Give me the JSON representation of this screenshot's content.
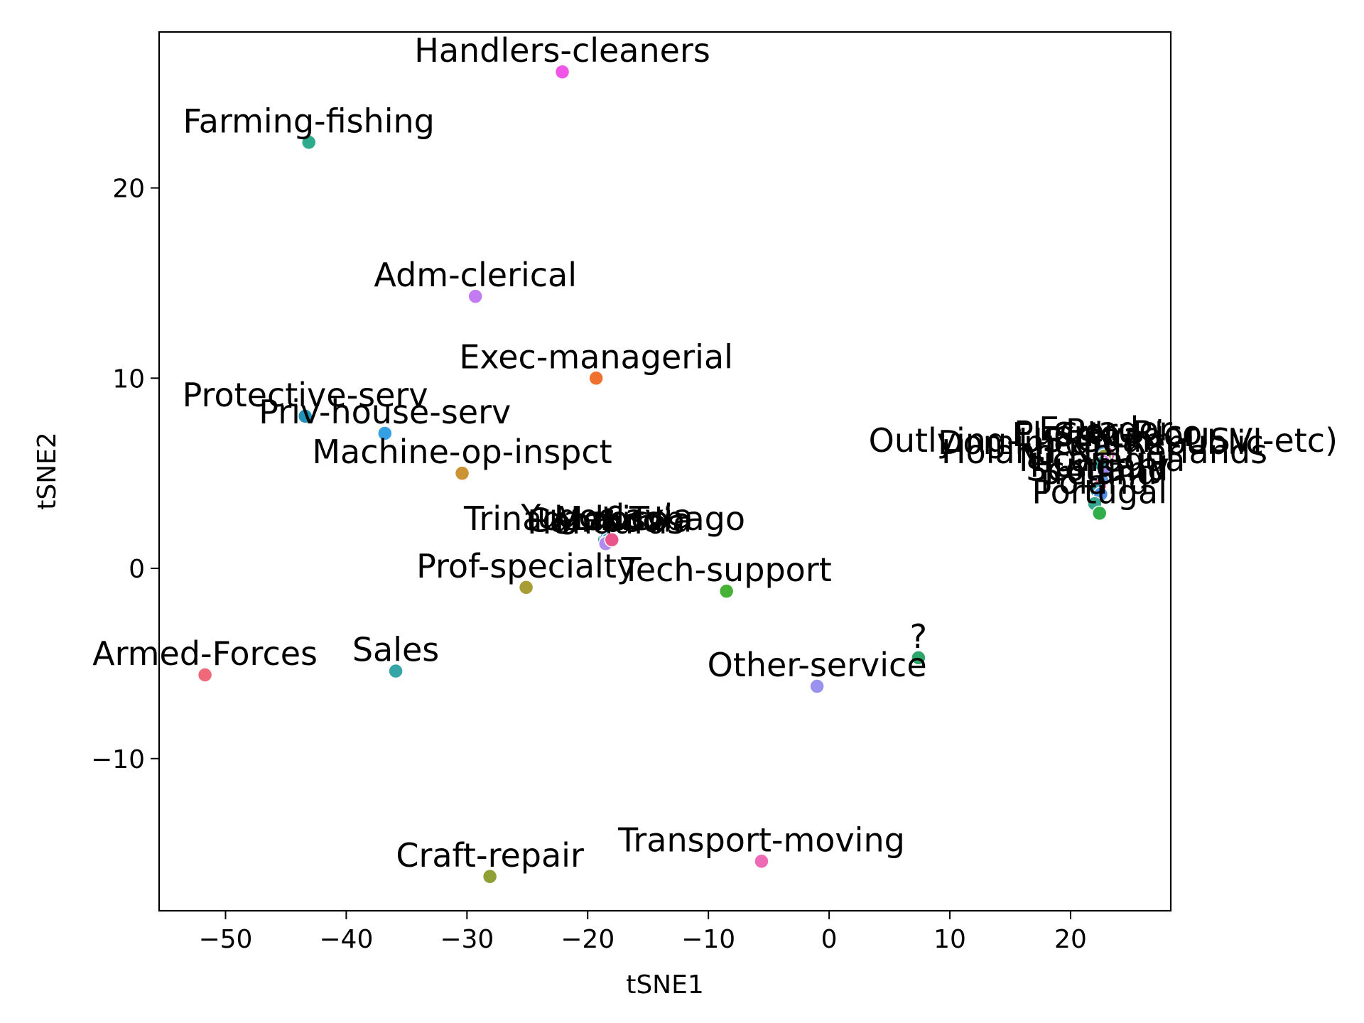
{
  "chart_data": {
    "type": "scatter",
    "xlabel": "tSNE1",
    "ylabel": "tSNE2",
    "xlim": [
      -55.5,
      28.3
    ],
    "ylim": [
      -18.0,
      28.2
    ],
    "xticks": [
      -50,
      -40,
      -30,
      -20,
      -10,
      0,
      10,
      20
    ],
    "yticks": [
      -10,
      0,
      10,
      20
    ],
    "xtick_labels": [
      "−50",
      "−40",
      "−30",
      "−20",
      "−10",
      "0",
      "10",
      "20"
    ],
    "ytick_labels": [
      "−10",
      "0",
      "10",
      "20"
    ],
    "grid": false,
    "legend": "none",
    "points": [
      {
        "label": "Handlers-cleaners",
        "x": -22.1,
        "y": 26.1,
        "color": "#ef55e6"
      },
      {
        "label": "Farming-fishing",
        "x": -43.1,
        "y": 22.4,
        "color": "#2eab8c"
      },
      {
        "label": "Adm-clerical",
        "x": -29.3,
        "y": 14.3,
        "color": "#c27bf0"
      },
      {
        "label": "Exec-managerial",
        "x": -19.3,
        "y": 10.0,
        "color": "#f0712d"
      },
      {
        "label": "Protective-serv",
        "x": -43.4,
        "y": 8.0,
        "color": "#2391b8"
      },
      {
        "label": "Priv-house-serv",
        "x": -36.8,
        "y": 7.1,
        "color": "#35a0e3"
      },
      {
        "label": "Machine-op-inspct",
        "x": -30.4,
        "y": 5.0,
        "color": "#cc9334"
      },
      {
        "label": "Trinadad&Tobago",
        "x": -18.6,
        "y": 1.5,
        "color": "#36ada0"
      },
      {
        "label": "Yugoslavia",
        "x": -18.4,
        "y": 1.6,
        "color": "#5d8de8"
      },
      {
        "label": "Cambodia",
        "x": -18.2,
        "y": 1.4,
        "color": "#ab7ff0"
      },
      {
        "label": "Laos",
        "x": -18.3,
        "y": 1.5,
        "color": "#39b0c8"
      },
      {
        "label": "Honduras",
        "x": -18.5,
        "y": 1.3,
        "color": "#b18af0"
      },
      {
        "label": "Mexico",
        "x": -18.0,
        "y": 1.5,
        "color": "#e9558a"
      },
      {
        "label": "Prof-specialty",
        "x": -25.1,
        "y": -1.0,
        "color": "#a89c35"
      },
      {
        "label": "Tech-support",
        "x": -8.5,
        "y": -1.2,
        "color": "#47b136"
      },
      {
        "label": "?",
        "x": 7.4,
        "y": -4.7,
        "color": "#2ea86a"
      },
      {
        "label": "Other-service",
        "x": -1.0,
        "y": -6.2,
        "color": "#9a92ee"
      },
      {
        "label": "Armed-Forces",
        "x": -51.7,
        "y": -5.6,
        "color": "#f0697a"
      },
      {
        "label": "Sales",
        "x": -35.9,
        "y": -5.4,
        "color": "#36a5a8"
      },
      {
        "label": "Transport-moving",
        "x": -5.6,
        "y": -15.4,
        "color": "#ef6ab4"
      },
      {
        "label": "Craft-repair",
        "x": -28.1,
        "y": -16.2,
        "color": "#90a035"
      },
      {
        "label": "Ecuador",
        "x": 22.9,
        "y": 6.2,
        "color": "#c98ef2"
      },
      {
        "label": "Puerto-Rico",
        "x": 23.1,
        "y": 6.0,
        "color": "#ea6ac0"
      },
      {
        "label": "Peru",
        "x": 22.6,
        "y": 6.1,
        "color": "#52a8d8"
      },
      {
        "label": "El-Salvador",
        "x": 22.8,
        "y": 5.9,
        "color": "#8fa23a"
      },
      {
        "label": "Outlying-US(Guam-USVI-etc)",
        "x": 22.7,
        "y": 5.6,
        "color": "#d772e8"
      },
      {
        "label": "Dominican-Republic",
        "x": 22.5,
        "y": 5.5,
        "color": "#39aab0"
      },
      {
        "label": "Holand-Netherlands",
        "x": 22.8,
        "y": 5.0,
        "color": "#9b85ef"
      },
      {
        "label": "Nicaragua",
        "x": 22.6,
        "y": 4.6,
        "color": "#5e9be8"
      },
      {
        "label": "Hungary",
        "x": 22.4,
        "y": 4.3,
        "color": "#e8709a"
      },
      {
        "label": "Scotland",
        "x": 22.2,
        "y": 4.1,
        "color": "#3aa6b8"
      },
      {
        "label": "Ireland",
        "x": 22.5,
        "y": 3.9,
        "color": "#4f91e6"
      },
      {
        "label": "Poland",
        "x": 22.0,
        "y": 3.4,
        "color": "#38a890"
      },
      {
        "label": "Portugal",
        "x": 22.4,
        "y": 2.9,
        "color": "#2fae4a"
      }
    ]
  }
}
